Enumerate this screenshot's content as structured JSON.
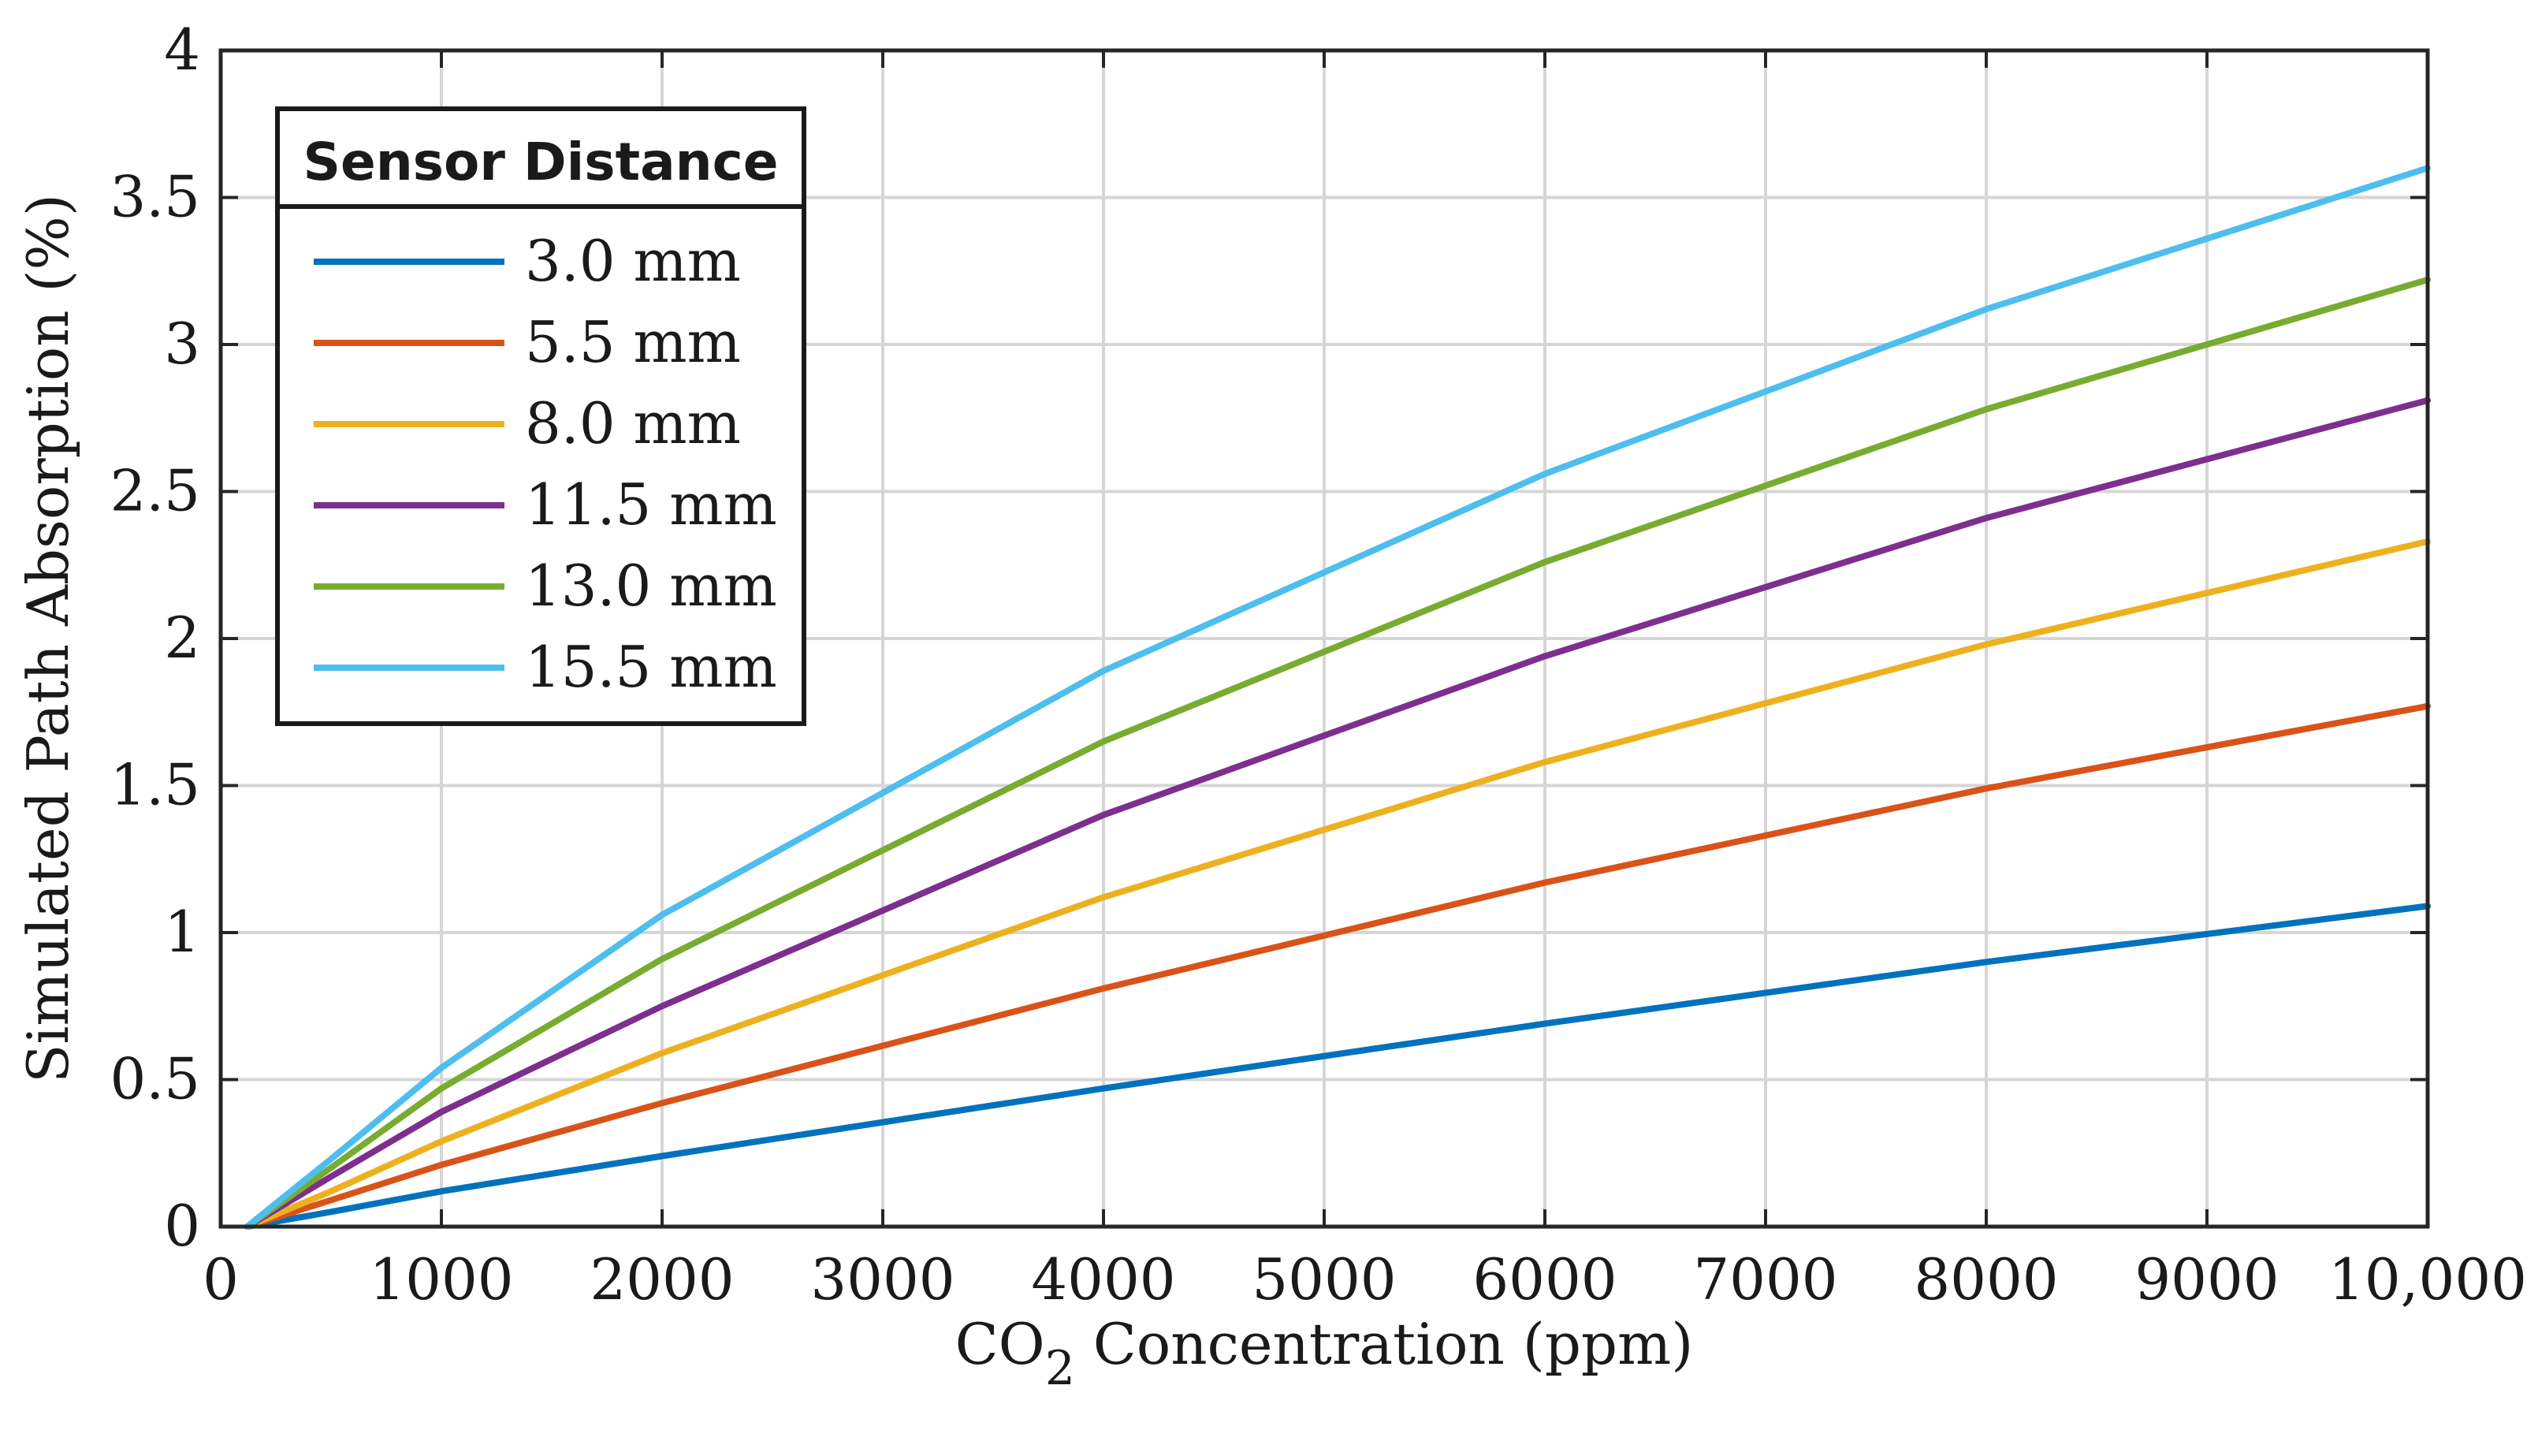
{
  "chart_data": {
    "type": "line",
    "title": "",
    "xlabel_prefix": "CO",
    "xlabel_subscript": "2",
    "xlabel_suffix": " Concentration (ppm)",
    "ylabel": "Simulated Path Absorption (%)",
    "xlim": [
      0,
      10000
    ],
    "ylim": [
      0,
      4
    ],
    "grid": true,
    "x_ticks": [
      {
        "value": 0,
        "label": "0"
      },
      {
        "value": 1000,
        "label": "1000"
      },
      {
        "value": 2000,
        "label": "2000"
      },
      {
        "value": 3000,
        "label": "3000"
      },
      {
        "value": 4000,
        "label": "4000"
      },
      {
        "value": 5000,
        "label": "5000"
      },
      {
        "value": 6000,
        "label": "6000"
      },
      {
        "value": 7000,
        "label": "7000"
      },
      {
        "value": 8000,
        "label": "8000"
      },
      {
        "value": 9000,
        "label": "9000"
      },
      {
        "value": 10000,
        "label": "10,000"
      }
    ],
    "y_ticks": [
      {
        "value": 0,
        "label": "0"
      },
      {
        "value": 0.5,
        "label": "0.5"
      },
      {
        "value": 1,
        "label": "1"
      },
      {
        "value": 1.5,
        "label": "1.5"
      },
      {
        "value": 2,
        "label": "2"
      },
      {
        "value": 2.5,
        "label": "2.5"
      },
      {
        "value": 3,
        "label": "3"
      },
      {
        "value": 3.5,
        "label": "3.5"
      },
      {
        "value": 4,
        "label": "4"
      }
    ],
    "x": [
      120,
      500,
      1000,
      2000,
      4000,
      6000,
      8000,
      10000
    ],
    "legend": {
      "title": "Sensor Distance",
      "position": "top-left"
    },
    "series": [
      {
        "name": "3.0 mm",
        "color": "#0072BD",
        "values": [
          0,
          0.05,
          0.12,
          0.24,
          0.47,
          0.69,
          0.9,
          1.09
        ]
      },
      {
        "name": "5.5 mm",
        "color": "#D95319",
        "values": [
          0,
          0.09,
          0.21,
          0.42,
          0.81,
          1.17,
          1.49,
          1.77
        ]
      },
      {
        "name": "8.0 mm",
        "color": "#EDB120",
        "values": [
          0,
          0.12,
          0.29,
          0.59,
          1.12,
          1.58,
          1.98,
          2.33
        ]
      },
      {
        "name": "11.5 mm",
        "color": "#7E2F8E",
        "values": [
          0,
          0.17,
          0.39,
          0.75,
          1.4,
          1.94,
          2.41,
          2.81
        ]
      },
      {
        "name": "13.0 mm",
        "color": "#77AC30",
        "values": [
          0,
          0.2,
          0.47,
          0.91,
          1.65,
          2.26,
          2.78,
          3.22
        ]
      },
      {
        "name": "15.5 mm",
        "color": "#4DBEEE",
        "values": [
          0,
          0.23,
          0.54,
          1.06,
          1.89,
          2.56,
          3.12,
          3.6
        ]
      }
    ]
  }
}
